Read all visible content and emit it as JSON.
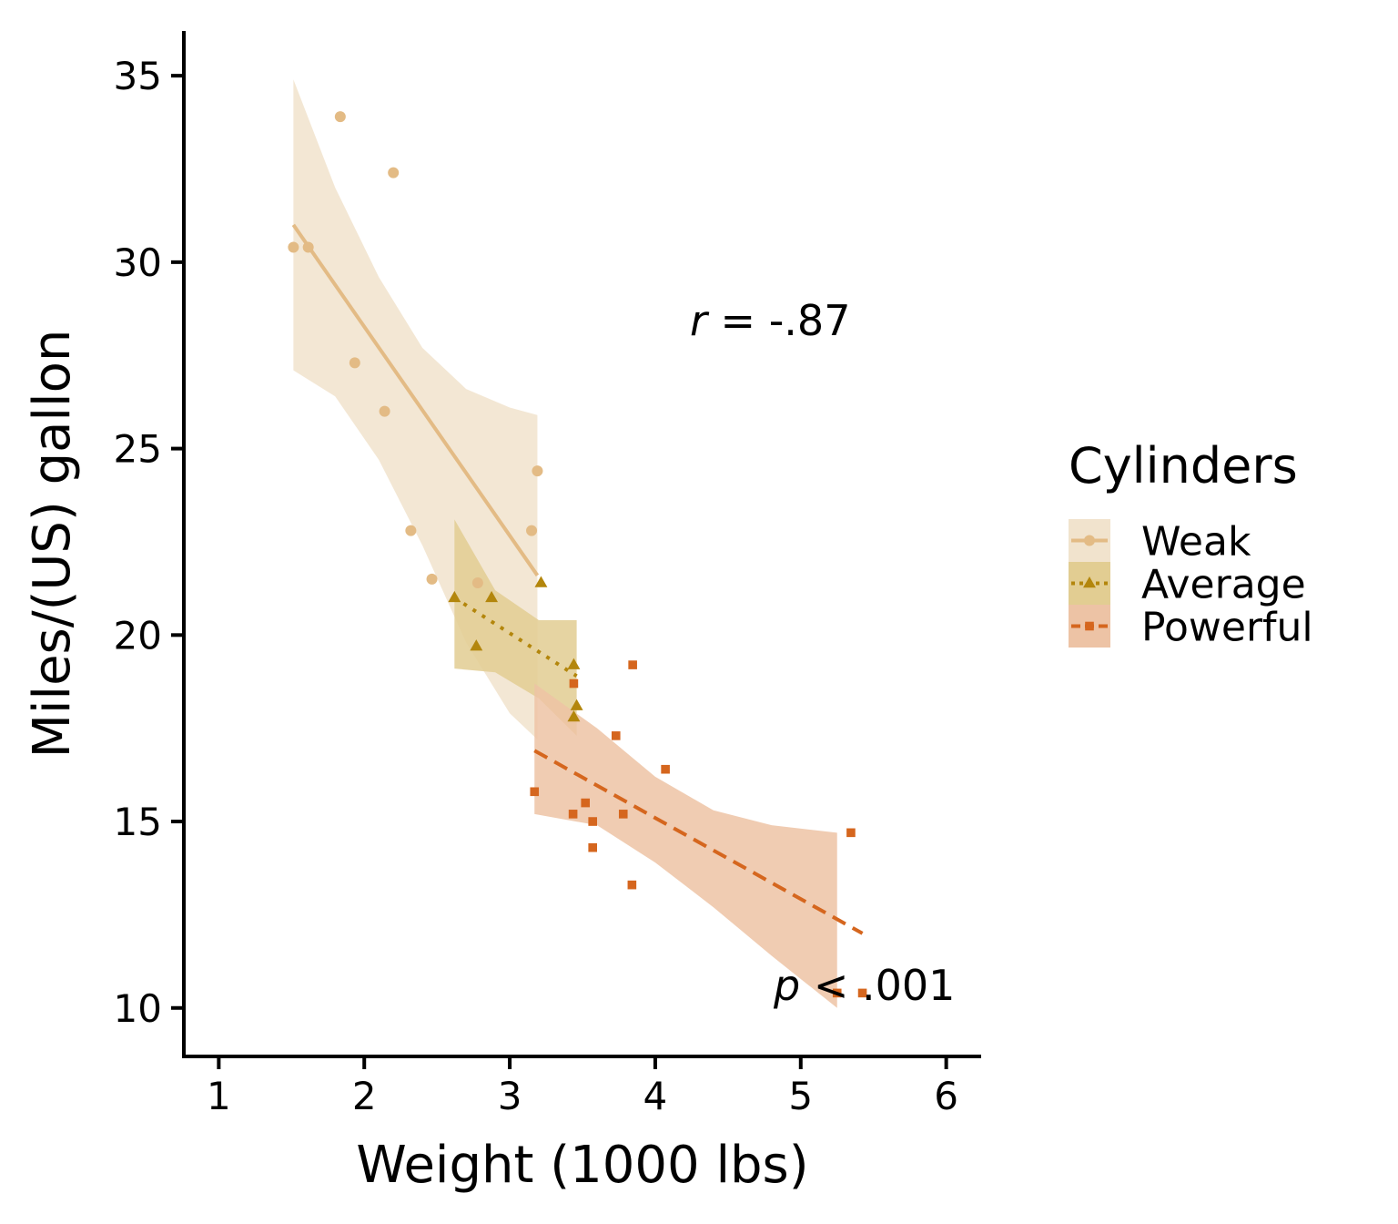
{
  "chart_data": {
    "type": "scatter",
    "title": "",
    "xlabel": "Weight (1000 lbs)",
    "ylabel": "Miles/(US) gallon",
    "xlim": [
      0.76,
      6.24
    ],
    "ylim": [
      8.7,
      36.2
    ],
    "xticks": [
      1,
      2,
      3,
      4,
      5,
      6
    ],
    "yticks": [
      10,
      15,
      20,
      25,
      30,
      35
    ],
    "grid": false,
    "legend_title": "Cylinders",
    "legend_position": "right",
    "annotations": {
      "r_symbol": "r",
      "r_text": " = -.87",
      "p_symbol": "p",
      "p_text": " < .001"
    },
    "series": [
      {
        "name": "Weak",
        "marker": "circle",
        "line": "solid",
        "color": "#E3BB85",
        "ribbon_color": "#F1E3CD",
        "x": [
          1.513,
          1.615,
          1.835,
          1.935,
          2.14,
          2.2,
          2.32,
          2.465,
          2.78,
          3.15,
          3.19
        ],
        "y": [
          30.4,
          30.4,
          33.9,
          27.3,
          26.0,
          32.4,
          22.8,
          21.5,
          21.4,
          22.8,
          24.4
        ],
        "fit": [
          [
            1.513,
            31.0
          ],
          [
            3.19,
            21.6
          ]
        ],
        "band": {
          "x": [
            1.513,
            1.8,
            2.1,
            2.4,
            2.7,
            3.0,
            3.19
          ],
          "upper": [
            34.9,
            32.0,
            29.6,
            27.7,
            26.6,
            26.1,
            25.9
          ],
          "lower": [
            27.1,
            26.4,
            24.7,
            22.4,
            19.8,
            17.9,
            17.2
          ]
        }
      },
      {
        "name": "Average",
        "marker": "triangle",
        "line": "dotted",
        "color": "#B3860C",
        "ribbon_color": "#E2CD92",
        "x": [
          2.62,
          2.77,
          2.875,
          3.215,
          3.44,
          3.44,
          3.46
        ],
        "y": [
          21.0,
          19.7,
          21.0,
          21.4,
          19.2,
          17.8,
          18.1
        ],
        "fit": [
          [
            2.62,
            21.0
          ],
          [
            3.46,
            18.9
          ]
        ],
        "band": {
          "x": [
            2.62,
            2.9,
            3.2,
            3.46
          ],
          "upper": [
            23.1,
            21.2,
            20.4,
            20.4
          ],
          "lower": [
            19.1,
            19.0,
            18.3,
            17.3
          ]
        }
      },
      {
        "name": "Powerful",
        "marker": "square",
        "line": "dashed",
        "color": "#D5661E",
        "ribbon_color": "#EDC3A5",
        "x": [
          3.17,
          3.435,
          3.44,
          3.52,
          3.57,
          3.57,
          3.73,
          3.78,
          3.84,
          3.845,
          4.07,
          5.25,
          5.345,
          5.424
        ],
        "y": [
          15.8,
          15.2,
          18.7,
          15.5,
          14.3,
          15.0,
          17.3,
          15.2,
          13.3,
          19.2,
          16.4,
          10.4,
          14.7,
          10.4
        ],
        "fit": [
          [
            3.17,
            16.9
          ],
          [
            5.424,
            12.0
          ]
        ],
        "band": {
          "x": [
            3.17,
            3.6,
            4.0,
            4.4,
            4.8,
            5.25
          ],
          "upper": [
            18.7,
            17.5,
            16.2,
            15.3,
            14.9,
            14.7
          ],
          "lower": [
            15.2,
            14.9,
            13.9,
            12.7,
            11.4,
            10.0
          ]
        }
      }
    ]
  }
}
